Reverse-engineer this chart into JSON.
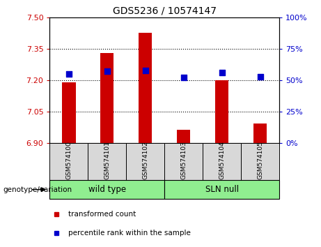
{
  "title": "GDS5236 / 10574147",
  "samples": [
    "GSM574100",
    "GSM574101",
    "GSM574102",
    "GSM574103",
    "GSM574104",
    "GSM574105"
  ],
  "transformed_counts": [
    7.19,
    7.33,
    7.425,
    6.965,
    7.2,
    6.995
  ],
  "percentile_ranks": [
    55,
    57,
    58,
    52,
    56,
    53
  ],
  "ylim_left": [
    6.9,
    7.5
  ],
  "ylim_right": [
    0,
    100
  ],
  "yticks_left": [
    6.9,
    7.05,
    7.2,
    7.35,
    7.5
  ],
  "yticks_right": [
    0,
    25,
    50,
    75,
    100
  ],
  "bar_color": "#cc0000",
  "dot_color": "#0000cc",
  "bar_bottom": 6.9,
  "tick_color_left": "#cc0000",
  "tick_color_right": "#0000cc",
  "legend_items": [
    "transformed count",
    "percentile rank within the sample"
  ],
  "legend_colors": [
    "#cc0000",
    "#0000cc"
  ],
  "genotype_label": "genotype/variation",
  "wild_type_label": "wild type",
  "sln_null_label": "SLN null",
  "wild_type_color": "#90ee90",
  "sln_null_color": "#90ee90",
  "sample_box_color": "#d8d8d8",
  "grid_lines": [
    7.05,
    7.2,
    7.35
  ],
  "bar_width": 0.35,
  "dot_size": 30
}
